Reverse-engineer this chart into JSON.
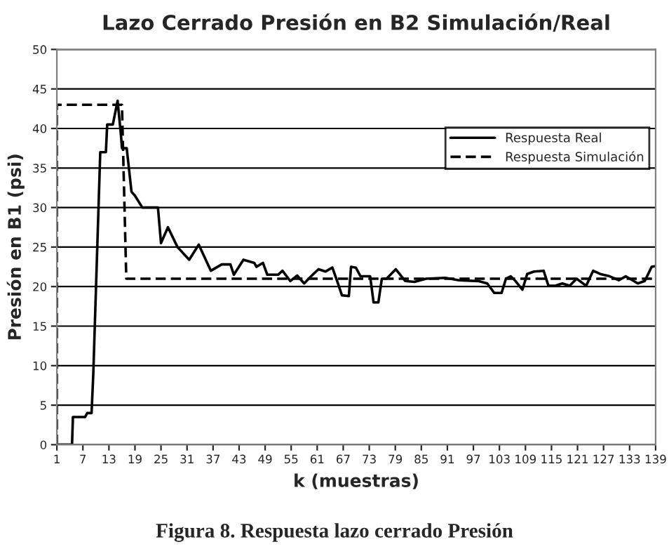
{
  "chart_data": {
    "type": "line",
    "title": "Lazo Cerrado Presión en B2 Simulación/Real",
    "xlabel": "k (muestras)",
    "ylabel": "Presión en B1 (psi)",
    "annotations": [
      "Figura 8. Respuesta lazo cerrado Presión"
    ],
    "xlim": [
      1,
      139
    ],
    "xticks": [
      1,
      7,
      13,
      19,
      25,
      31,
      37,
      43,
      49,
      55,
      61,
      67,
      73,
      79,
      85,
      91,
      97,
      103,
      109,
      115,
      121,
      127,
      133,
      139
    ],
    "ylim": [
      0,
      50
    ],
    "yticks": [
      0,
      5,
      10,
      15,
      20,
      25,
      30,
      35,
      40,
      45,
      50
    ],
    "grid": "y",
    "legend": "right",
    "series": [
      {
        "name": "Respuesta Real",
        "color": "#000000",
        "line_style": "solid",
        "x": [
          1,
          4.5,
          4.7,
          7.5,
          8,
          9,
          9.4,
          11,
          12.3,
          12.6,
          13.9,
          15,
          15.8,
          16,
          17.1,
          18.2,
          19,
          20.7,
          24.3,
          25,
          26.6,
          28.8,
          31.5,
          33.7,
          36.5,
          39,
          41,
          41.8,
          44,
          46.5,
          47,
          48.5,
          49.5,
          52,
          53,
          54.8,
          56.4,
          58,
          59.6,
          61.3,
          62.9,
          64.5,
          65.6,
          66.7,
          68.3,
          68.8,
          69.9,
          71,
          73.2,
          74,
          75.1,
          75.9,
          77,
          79.1,
          81.3,
          83.4,
          86.1,
          90.5,
          93.7,
          98.1,
          100.2,
          101.8,
          103.5,
          104.5,
          105.6,
          106.7,
          108.3,
          109.4,
          111,
          113.2,
          114.3,
          115.9,
          117.5,
          119.2,
          120.8,
          123,
          124.6,
          126.2,
          128.4,
          130.5,
          132.1,
          134.9,
          136.5,
          138.1,
          139
        ],
        "values": [
          0,
          0,
          3.5,
          3.5,
          4,
          4,
          9,
          37,
          37,
          40.5,
          40.5,
          43.5,
          39,
          37.5,
          37.5,
          32,
          31.5,
          30,
          30,
          25.5,
          27.5,
          25,
          23.4,
          25.3,
          22,
          22.8,
          22.8,
          21.5,
          23.4,
          23,
          22.5,
          23,
          21.5,
          21.5,
          22,
          20.7,
          21.4,
          20.4,
          21.3,
          22.2,
          21.9,
          22.4,
          20.7,
          18.9,
          18.8,
          22.5,
          22.4,
          21.3,
          21.3,
          18,
          18,
          21,
          21,
          22.2,
          20.7,
          20.6,
          21,
          21.1,
          20.8,
          20.7,
          20.4,
          19.2,
          19.2,
          21,
          21.3,
          20.7,
          19.6,
          21.6,
          21.9,
          22,
          20.1,
          20.1,
          20.4,
          20.1,
          21,
          20.1,
          22,
          21.6,
          21.3,
          20.8,
          21.3,
          20.4,
          20.7,
          22.5,
          22.6
        ]
      },
      {
        "name": "Respuesta Simulación",
        "color": "#000000",
        "line_style": "dashed",
        "x": [
          1,
          1,
          16,
          17,
          139
        ],
        "values": [
          0,
          43,
          43,
          21,
          21
        ]
      }
    ]
  }
}
